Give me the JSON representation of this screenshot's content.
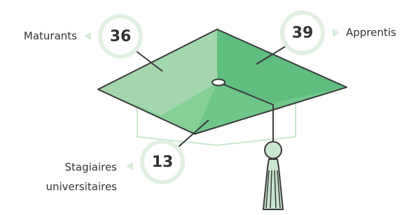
{
  "items": [
    {
      "label": [
        "Maturants"
      ],
      "value": 36
    },
    {
      "label": [
        "Apprentis"
      ],
      "value": 39
    },
    {
      "label": [
        "Stagiaires",
        "universitaires"
      ],
      "value": 13
    }
  ]
}
